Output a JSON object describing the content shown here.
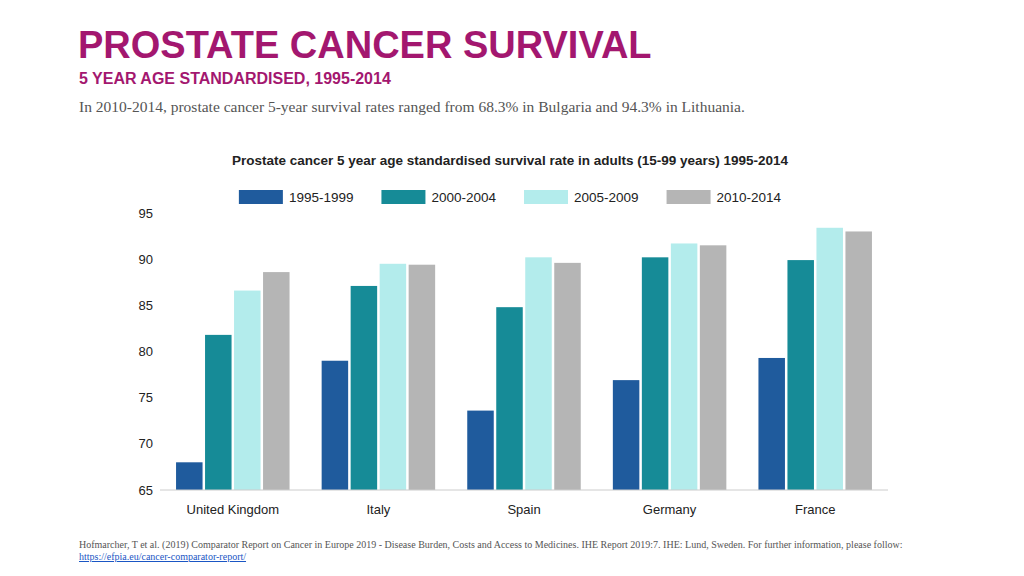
{
  "header": {
    "title": "PROSTATE CANCER SURVIVAL",
    "subtitle": "5 YEAR AGE STANDARDISED, 1995-2014",
    "text": "In 2010-2014, prostate cancer 5-year survival rates ranged from 68.3% in Bulgaria and 94.3% in Lithuania."
  },
  "chart_data": {
    "type": "bar",
    "title": "Prostate cancer 5 year age standardised survival rate in adults (15-99 years) 1995-2014",
    "categories": [
      "United Kingdom",
      "Italy",
      "Spain",
      "Germany",
      "France"
    ],
    "series": [
      {
        "name": "1995-1999",
        "color": "#1f5b9d",
        "values": [
          68.0,
          79.0,
          73.6,
          76.9,
          79.3
        ]
      },
      {
        "name": "2000-2004",
        "color": "#168b97",
        "values": [
          81.8,
          87.1,
          84.8,
          90.2,
          89.9
        ]
      },
      {
        "name": "2005-2009",
        "color": "#b3ecec",
        "values": [
          86.6,
          89.5,
          90.2,
          91.7,
          93.4
        ]
      },
      {
        "name": "2010-2014",
        "color": "#b5b5b5",
        "values": [
          88.6,
          89.4,
          89.6,
          91.5,
          93.0
        ]
      }
    ],
    "ylim": [
      65,
      95
    ],
    "yticks": [
      65,
      70,
      75,
      80,
      85,
      90,
      95
    ],
    "grid": false,
    "legend": "top"
  },
  "footer": {
    "source": "Hofmarcher, T et al. (2019) Comparator Report on Cancer in Europe 2019 - Disease Burden, Costs and Access to Medicines. IHE Report 2019:7. IHE: Lund, Sweden. For further information, please follow:",
    "link": "https://efpia.eu/cancer-comparator-report/"
  }
}
